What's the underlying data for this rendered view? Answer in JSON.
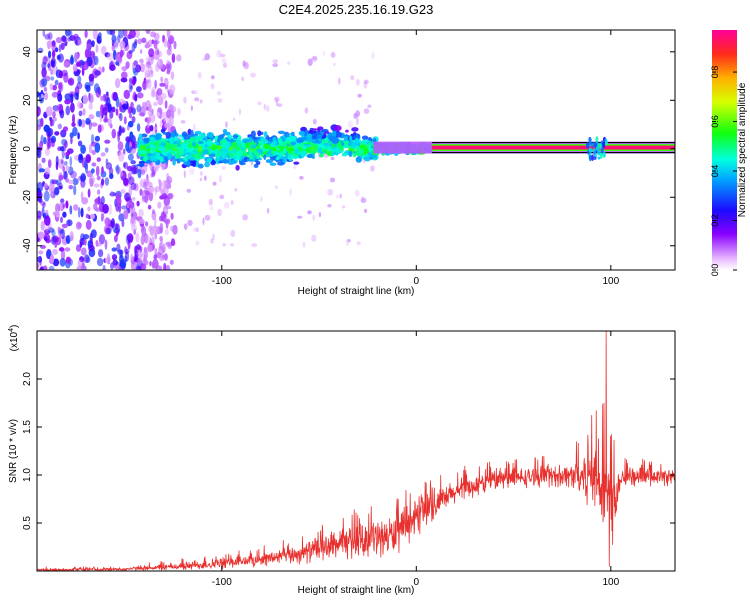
{
  "title": "C2E4.2025.235.16.19.G23",
  "chart_data": [
    {
      "type": "heatmap",
      "title": "C2E4.2025.235.16.19.G23",
      "xlabel": "Height of straight line (km)",
      "ylabel": "Frequency (Hz)",
      "xlim": [
        -195,
        133
      ],
      "ylim": [
        -50,
        49
      ],
      "xticks": [
        -100,
        0,
        100
      ],
      "xtick_labels": [
        "-100",
        "0",
        "100"
      ],
      "yticks": [
        -40,
        -20,
        0,
        20,
        40
      ],
      "ytick_labels": [
        "-40",
        "-20",
        "0",
        "20",
        "40"
      ],
      "grid": false,
      "colorbar": {
        "label": "Normalized spectral amplitude",
        "range": [
          0,
          0.97
        ],
        "ticks": [
          0,
          0.2,
          0.4,
          0.6,
          0.8
        ],
        "tick_labels": [
          "0.0",
          "0.2",
          "0.4",
          "0.6",
          "0.8"
        ]
      },
      "tone_line": {
        "frequency_hz": 0.5,
        "x_start_km": 8,
        "x_end_km": 133,
        "amplitude": 0.97
      },
      "cluster_band": {
        "x_start_km": -142,
        "x_end_km": -20,
        "half_width_hz": [
          10,
          7
        ],
        "amplitude": [
          0.45,
          0.55
        ]
      },
      "noise_region": {
        "x_start_km": -195,
        "x_end_km": -142,
        "amplitude": [
          0.05,
          0.3
        ]
      }
    },
    {
      "type": "line",
      "xlabel": "Height of straight line (km)",
      "ylabel": "SNR (10 * v/v)",
      "y_multiplier_label": "(x10",
      "y_multiplier_exponent": "4",
      "xlim": [
        -195,
        133
      ],
      "ylim": [
        0,
        2.5
      ],
      "xticks": [
        -100,
        0,
        100
      ],
      "xtick_labels": [
        "-100",
        "0",
        "100"
      ],
      "yticks": [
        0.5,
        1.0,
        1.5,
        2.0
      ],
      "ytick_labels": [
        "0.5",
        "1.0",
        "1.5",
        "2.0"
      ],
      "grid": false,
      "series": [
        {
          "name": "SNR",
          "color": "#e8312e",
          "envelope": [
            {
              "x": -195,
              "mean": 0.01,
              "spread": 0.02
            },
            {
              "x": -150,
              "mean": 0.02,
              "spread": 0.02
            },
            {
              "x": -120,
              "mean": 0.05,
              "spread": 0.05
            },
            {
              "x": -100,
              "mean": 0.08,
              "spread": 0.07
            },
            {
              "x": -80,
              "mean": 0.12,
              "spread": 0.08
            },
            {
              "x": -60,
              "mean": 0.18,
              "spread": 0.12
            },
            {
              "x": -40,
              "mean": 0.28,
              "spread": 0.18
            },
            {
              "x": -20,
              "mean": 0.35,
              "spread": 0.22
            },
            {
              "x": -10,
              "mean": 0.38,
              "spread": 0.25
            },
            {
              "x": 0,
              "mean": 0.55,
              "spread": 0.2
            },
            {
              "x": 20,
              "mean": 0.82,
              "spread": 0.15
            },
            {
              "x": 40,
              "mean": 0.95,
              "spread": 0.12
            },
            {
              "x": 60,
              "mean": 0.98,
              "spread": 0.12
            },
            {
              "x": 80,
              "mean": 1.0,
              "spread": 0.15
            },
            {
              "x": 92,
              "mean": 1.0,
              "spread": 0.5
            },
            {
              "x": 96,
              "mean": 0.95,
              "spread": 0.8
            },
            {
              "x": 100,
              "mean": 0.6,
              "spread": 0.6
            },
            {
              "x": 105,
              "mean": 0.98,
              "spread": 0.12
            },
            {
              "x": 133,
              "mean": 0.98,
              "spread": 0.1
            }
          ],
          "peaks": [
            {
              "x": 97.6,
              "y": 2.5
            },
            {
              "x": 96.5,
              "y": 1.75
            },
            {
              "x": 92.5,
              "y": 1.67
            },
            {
              "x": 99.2,
              "y": 0.05
            }
          ]
        }
      ]
    }
  ]
}
